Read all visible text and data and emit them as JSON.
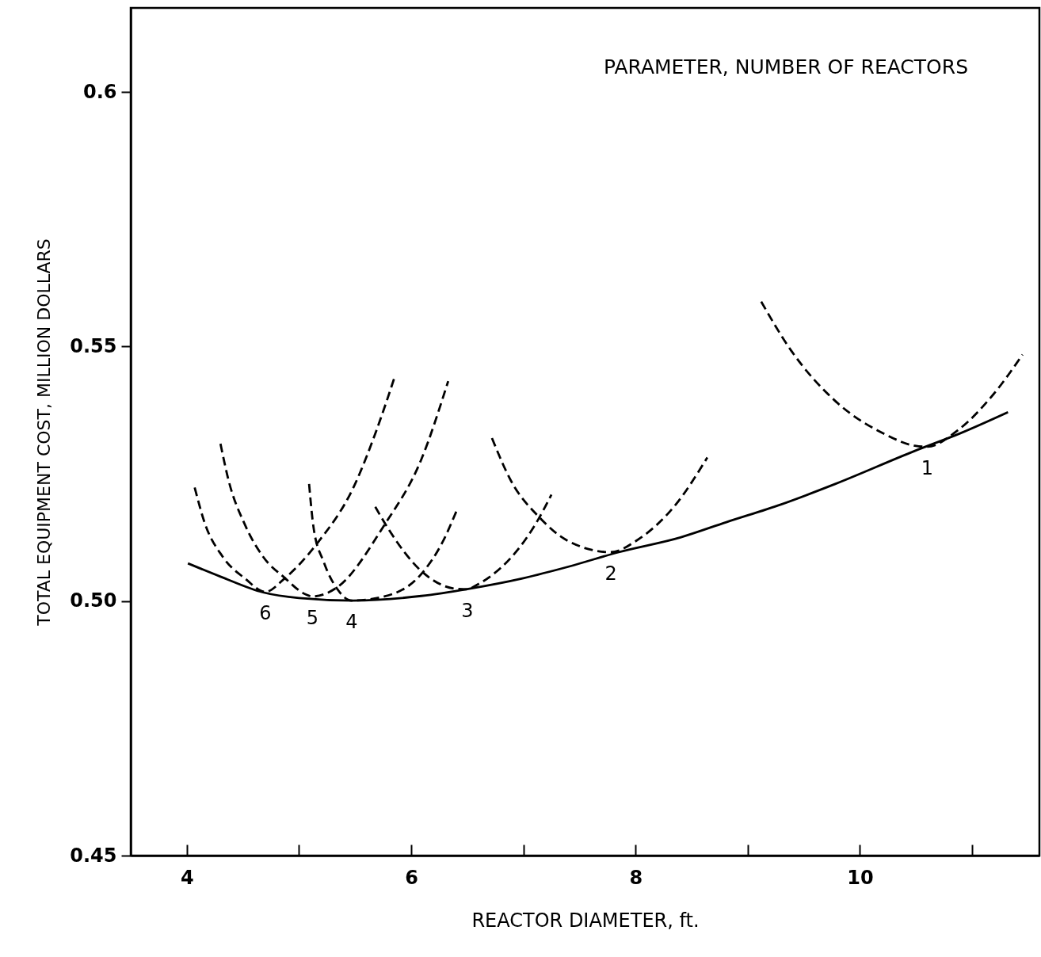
{
  "chart_data": {
    "type": "line",
    "xlabel": "REACTOR  DIAMETER,  ft.",
    "ylabel": "TOTAL  EQUIPMENT  COST,  MILLION  DOLLARS",
    "annotations": [
      "PARAMETER, NUMBER  OF  REACTORS"
    ],
    "xlim": [
      3.5,
      11.6
    ],
    "ylim": [
      0.45,
      0.6165
    ],
    "xticks": [
      4,
      {
        "value": 5,
        "label": null
      },
      6,
      {
        "value": 7,
        "label": null
      },
      8,
      {
        "value": 9,
        "label": null
      },
      10,
      {
        "value": 11,
        "label": null
      }
    ],
    "yticks": [
      {
        "value": 0.45,
        "label": "0.45"
      },
      {
        "value": 0.5,
        "label": "0.50"
      },
      0.55,
      0.6
    ],
    "grid": false,
    "marker": "none",
    "series": [
      {
        "name": "1",
        "color": "#000000",
        "line_style": "dashed",
        "x": [
          9.12,
          9.39,
          9.78,
          10.22,
          10.49,
          10.6,
          10.87,
          11.19,
          11.45
        ],
        "values": [
          0.5588,
          0.5491,
          0.5393,
          0.5328,
          0.5305,
          0.5303,
          0.5335,
          0.5406,
          0.5484
        ]
      },
      {
        "name": "2",
        "color": "#000000",
        "line_style": "dashed",
        "x": [
          6.72,
          6.89,
          7.14,
          7.39,
          7.78,
          8.01,
          8.36,
          8.64
        ],
        "values": [
          0.532,
          0.5236,
          0.5165,
          0.5119,
          0.5096,
          0.5119,
          0.519,
          0.5282
        ]
      },
      {
        "name": "3",
        "color": "#000000",
        "line_style": "dashed",
        "x": [
          5.68,
          5.79,
          6.09,
          6.4,
          6.5,
          6.58,
          7.15,
          7.25
        ],
        "values": [
          0.5185,
          0.5144,
          0.5059,
          0.5024,
          0.5023,
          0.5031,
          0.5167,
          0.5209
        ]
      },
      {
        "name": "4",
        "color": "#000000",
        "line_style": "dashed",
        "x": [
          5.09,
          5.13,
          5.22,
          5.34,
          5.47,
          5.76,
          6.09,
          6.28,
          6.41
        ],
        "values": [
          0.523,
          0.5144,
          0.5077,
          0.5024,
          0.5001,
          0.5009,
          0.5053,
          0.5116,
          0.518
        ]
      },
      {
        "name": "5",
        "color": "#000000",
        "line_style": "dashed",
        "x": [
          4.3,
          4.37,
          4.52,
          4.68,
          4.87,
          5.06,
          5.12,
          5.34,
          5.76,
          6.09,
          6.33
        ],
        "values": [
          0.5309,
          0.5239,
          0.5149,
          0.5087,
          0.5046,
          0.5013,
          0.5009,
          0.5027,
          0.5149,
          0.5278,
          0.5432
        ]
      },
      {
        "name": "6",
        "color": "#000000",
        "line_style": "dashed",
        "x": [
          4.07,
          4.16,
          4.32,
          4.52,
          4.7,
          4.87,
          5.15,
          5.5,
          5.69,
          5.86
        ],
        "values": [
          0.5223,
          0.5153,
          0.5087,
          0.5044,
          0.5018,
          0.5044,
          0.511,
          0.523,
          0.5335,
          0.5445
        ]
      },
      {
        "color": "#000000",
        "line_style": "solid",
        "x": [
          4.01,
          4.3,
          4.68,
          5.0,
          5.48,
          6.09,
          6.51,
          7.0,
          7.41,
          7.85,
          8.4,
          8.81,
          9.3,
          9.78,
          10.49,
          10.9,
          11.32
        ],
        "values": [
          0.5074,
          0.5048,
          0.5017,
          0.5006,
          0.5001,
          0.501,
          0.5024,
          0.5045,
          0.5068,
          0.5096,
          0.5125,
          0.5155,
          0.519,
          0.523,
          0.5295,
          0.533,
          0.5371
        ]
      }
    ]
  }
}
